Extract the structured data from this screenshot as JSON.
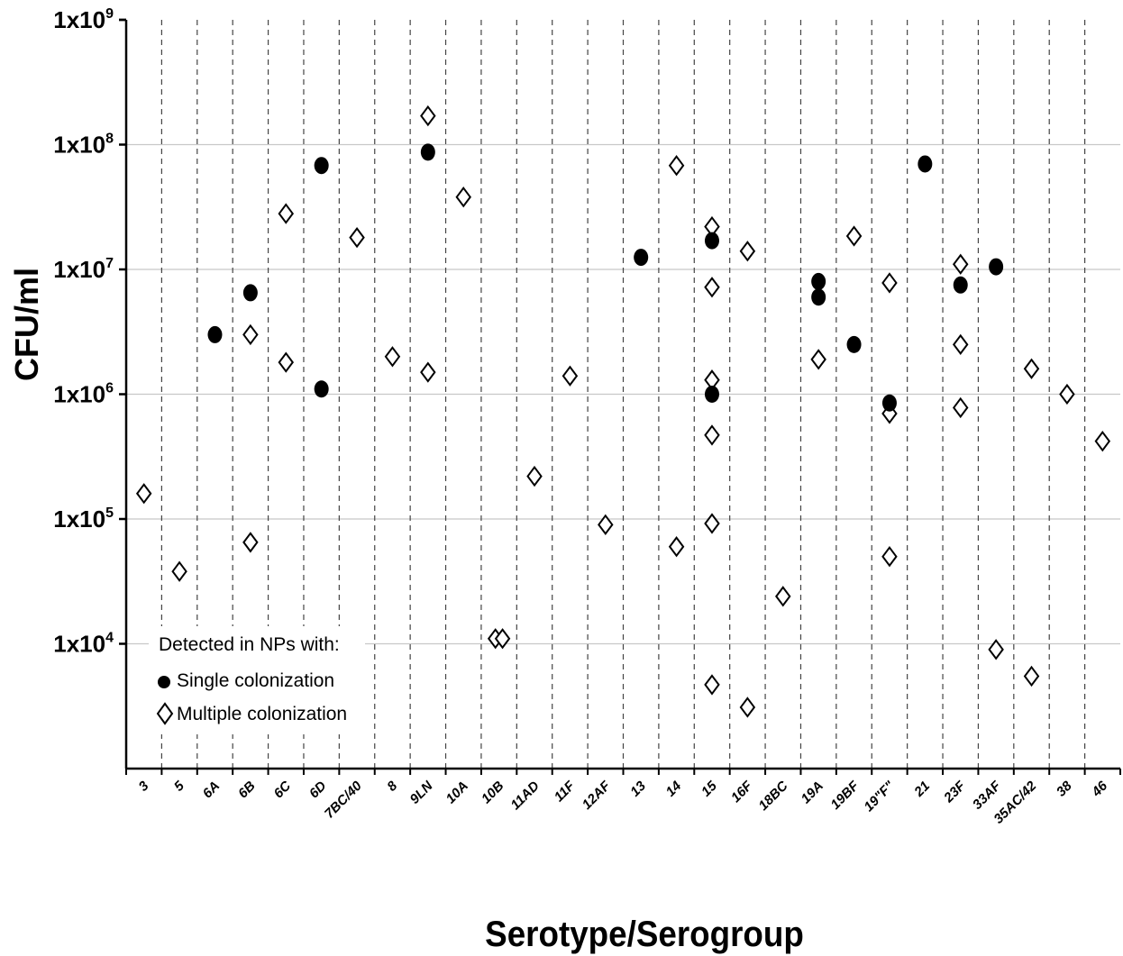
{
  "chart_data": {
    "type": "scatter",
    "xlabel": "Serotype/Serogroup",
    "ylabel": "CFU/ml",
    "yscale": "log",
    "ylim": [
      1000,
      1000000000
    ],
    "yticks": [
      {
        "base": "1x10",
        "exp": "4",
        "value": 10000
      },
      {
        "base": "1x10",
        "exp": "5",
        "value": 100000
      },
      {
        "base": "1x10",
        "exp": "6",
        "value": 1000000
      },
      {
        "base": "1x10",
        "exp": "7",
        "value": 10000000
      },
      {
        "base": "1x10",
        "exp": "8",
        "value": 100000000
      },
      {
        "base": "1x10",
        "exp": "9",
        "value": 1000000000
      }
    ],
    "grid": "horizontal solid at decades, vertical dashed between categories",
    "categories": [
      "3",
      "5",
      "6A",
      "6B",
      "6C",
      "6D",
      "7BC/40",
      "8",
      "9LN",
      "10A",
      "10B",
      "11AD",
      "11F",
      "12AF",
      "13",
      "14",
      "15",
      "16F",
      "18BC",
      "19A",
      "19BF",
      "19\"F\"",
      "21",
      "23F",
      "33AF",
      "35AC/42",
      "38",
      "46"
    ],
    "legend": {
      "title": "Detected in NPs with:",
      "position": "bottom-left",
      "entries": [
        "Single colonization",
        "Multiple colonization"
      ]
    },
    "series": [
      {
        "name": "Single colonization",
        "marker": "filled-circle",
        "points": [
          {
            "x": "6A",
            "y": 3000000
          },
          {
            "x": "6B",
            "y": 6500000
          },
          {
            "x": "6D",
            "y": 68000000
          },
          {
            "x": "6D",
            "y": 1100000
          },
          {
            "x": "9LN",
            "y": 87000000
          },
          {
            "x": "13",
            "y": 12500000
          },
          {
            "x": "15",
            "y": 17000000
          },
          {
            "x": "15",
            "y": 1000000
          },
          {
            "x": "19A",
            "y": 8000000
          },
          {
            "x": "19A",
            "y": 6000000
          },
          {
            "x": "19BF",
            "y": 2500000
          },
          {
            "x": "19\"F\"",
            "y": 850000
          },
          {
            "x": "21",
            "y": 70000000
          },
          {
            "x": "23F",
            "y": 7500000
          },
          {
            "x": "33AF",
            "y": 10500000
          }
        ]
      },
      {
        "name": "Multiple colonization",
        "marker": "open-diamond",
        "points": [
          {
            "x": "3",
            "y": 160000
          },
          {
            "x": "5",
            "y": 38000
          },
          {
            "x": "6B",
            "y": 3000000
          },
          {
            "x": "6B",
            "y": 65000
          },
          {
            "x": "6C",
            "y": 28000000
          },
          {
            "x": "6C",
            "y": 1800000
          },
          {
            "x": "7BC/40",
            "y": 18000000
          },
          {
            "x": "8",
            "y": 2000000
          },
          {
            "x": "9LN",
            "y": 170000000
          },
          {
            "x": "9LN",
            "y": 1500000
          },
          {
            "x": "10A",
            "y": 38000000
          },
          {
            "x": "10B",
            "y": 11000,
            "offset": -0.1
          },
          {
            "x": "10B",
            "y": 11000,
            "offset": 0.1
          },
          {
            "x": "11AD",
            "y": 220000
          },
          {
            "x": "11F",
            "y": 1400000
          },
          {
            "x": "12AF",
            "y": 90000
          },
          {
            "x": "14",
            "y": 68000000
          },
          {
            "x": "14",
            "y": 60000
          },
          {
            "x": "15",
            "y": 22000000
          },
          {
            "x": "15",
            "y": 7200000
          },
          {
            "x": "15",
            "y": 1300000
          },
          {
            "x": "15",
            "y": 470000
          },
          {
            "x": "15",
            "y": 92000
          },
          {
            "x": "15",
            "y": 4700
          },
          {
            "x": "16F",
            "y": 14000000
          },
          {
            "x": "16F",
            "y": 3100
          },
          {
            "x": "18BC",
            "y": 24000
          },
          {
            "x": "19A",
            "y": 1900000
          },
          {
            "x": "19BF",
            "y": 18500000
          },
          {
            "x": "19\"F\"",
            "y": 7800000
          },
          {
            "x": "19\"F\"",
            "y": 700000
          },
          {
            "x": "19\"F\"",
            "y": 50000
          },
          {
            "x": "23F",
            "y": 11000000
          },
          {
            "x": "23F",
            "y": 2500000
          },
          {
            "x": "23F",
            "y": 780000
          },
          {
            "x": "33AF",
            "y": 9000
          },
          {
            "x": "35AC/42",
            "y": 1600000
          },
          {
            "x": "35AC/42",
            "y": 5500
          },
          {
            "x": "38",
            "y": 1000000
          },
          {
            "x": "46",
            "y": 420000
          }
        ]
      }
    ]
  }
}
